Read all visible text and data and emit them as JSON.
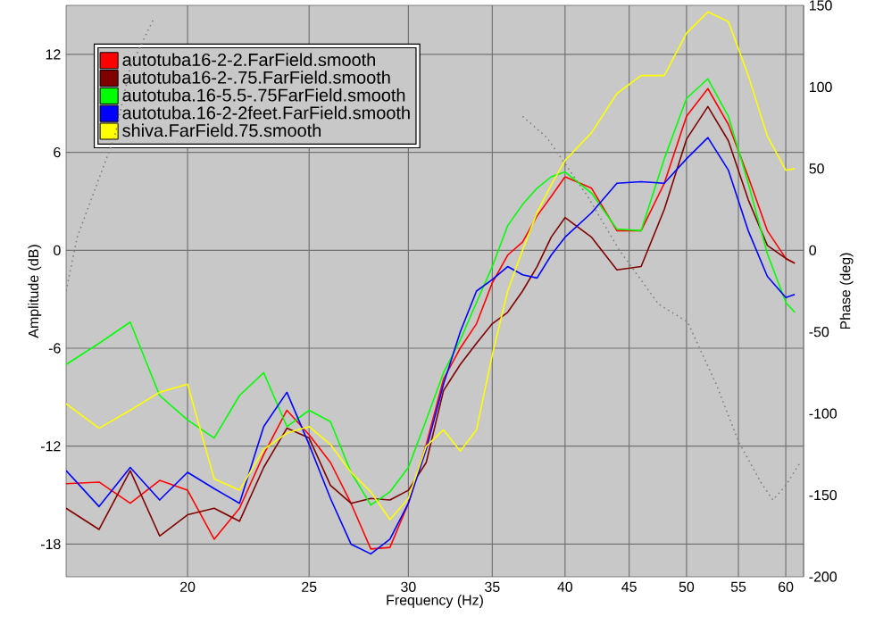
{
  "chart_data": {
    "type": "line",
    "xlabel": "Frequency (Hz)",
    "ylabel": "Amplitude (dB)",
    "y2label": "Phase (deg)",
    "log": "x",
    "xlim": [
      16,
      62
    ],
    "xticks": [
      20,
      25,
      30,
      35,
      40,
      45,
      50,
      55,
      60
    ],
    "ylim": [
      -20,
      15
    ],
    "yticks": [
      -18,
      -12,
      -6,
      0,
      6,
      12
    ],
    "y2lim": [
      -200,
      150
    ],
    "y2ticks": [
      -200,
      -150,
      -100,
      -50,
      0,
      50,
      100,
      150
    ],
    "grid": true,
    "legend": "top left",
    "x": [
      16,
      17,
      18,
      19,
      20,
      21,
      22,
      23,
      24,
      25,
      26,
      27,
      28,
      29,
      30,
      31,
      32,
      33,
      34,
      35,
      36,
      37,
      38,
      39,
      40,
      42,
      44,
      46,
      48,
      50,
      52,
      54,
      56,
      58,
      60,
      61
    ],
    "series": [
      {
        "name": "autotuba16-2-2.FarField.smooth",
        "color": "#ff0000",
        "values": [
          -14.3,
          -14.2,
          -15.5,
          -14.1,
          -14.7,
          -17.7,
          -15.8,
          -12.5,
          -9.8,
          -11.3,
          -13,
          -15.5,
          -18.3,
          -18.2,
          -15.5,
          -11.9,
          -7.9,
          -6,
          -4.5,
          -2,
          -0.3,
          0.5,
          2.1,
          3.3,
          4.5,
          3.8,
          1.2,
          1.2,
          4.1,
          8.2,
          9.9,
          7.7,
          4.5,
          1.2,
          -0.5,
          -0.8
        ]
      },
      {
        "name": "autotuba16-2-.75.FarField.smooth",
        "color": "#800000",
        "values": [
          -15.8,
          -17.1,
          -13.5,
          -17.5,
          -16.2,
          -15.8,
          -16.6,
          -13.3,
          -10.9,
          -11.5,
          -14.4,
          -15.5,
          -15.2,
          -15.3,
          -14.7,
          -13,
          -8.6,
          -7,
          -5.7,
          -4.5,
          -3.8,
          -2.5,
          -1,
          0.8,
          2,
          0.8,
          -1.2,
          -1,
          2.5,
          6.8,
          8.8,
          6.7,
          3.1,
          0.3,
          -0.5,
          -0.8
        ]
      },
      {
        "name": "autotuba.16-5.5-.75FarField.smooth",
        "color": "#00ff00",
        "values": [
          -7,
          -5.7,
          -4.4,
          -8.9,
          -10.4,
          -11.5,
          -8.9,
          -7.5,
          -10.8,
          -9.8,
          -10.5,
          -13.6,
          -15.6,
          -14.8,
          -13.3,
          -10.4,
          -7.5,
          -5.5,
          -3.2,
          -1,
          1.5,
          2.8,
          3.8,
          4.5,
          4.8,
          3.5,
          1.3,
          1.2,
          5.6,
          9.3,
          10.5,
          8.2,
          4.1,
          -0.2,
          -3.2,
          -3.8
        ]
      },
      {
        "name": "autotuba.16-2-2feet.FarField.smooth",
        "color": "#0000ff",
        "values": [
          -13.5,
          -15.7,
          -13.3,
          -15.3,
          -13.6,
          -14.6,
          -15.5,
          -10.8,
          -8.7,
          -11.9,
          -15.2,
          -18,
          -18.6,
          -17.7,
          -15.5,
          -12.2,
          -8.2,
          -5,
          -2.5,
          -1.8,
          -1,
          -1.5,
          -1.7,
          -0.3,
          0.8,
          2.3,
          4.1,
          4.2,
          4.1,
          5.6,
          6.9,
          4.9,
          1.2,
          -1.6,
          -2.9,
          -2.7
        ]
      },
      {
        "name": "shiva.FarField.75.smooth",
        "color": "#ffff00",
        "values": [
          -9.4,
          -10.9,
          -9.8,
          -8.7,
          -8.2,
          -14,
          -14.7,
          -12.2,
          -11.2,
          -10.8,
          -11.9,
          -13.6,
          -14.8,
          -16.5,
          -15.2,
          -12,
          -11,
          -12.3,
          -11,
          -6.4,
          -2.5,
          0,
          2.3,
          4,
          5.5,
          7.2,
          9.6,
          10.7,
          10.7,
          13.3,
          14.6,
          14,
          10.7,
          7,
          4.9,
          5
        ]
      },
      {
        "axis": "y2",
        "color": "#808080",
        "line_style": "dotted",
        "x": [
          16,
          16.33,
          17.5,
          18,
          18.8,
          19.5,
          37,
          38.7,
          41.7,
          44.2,
          47.5,
          50.1,
          52.8,
          55,
          57.3,
          58.6,
          60,
          61.5
        ],
        "values": [
          -25,
          8,
          70,
          112,
          142,
          null,
          82,
          69,
          33,
          0,
          -33,
          -44,
          -82,
          -117,
          -142,
          -153,
          -144,
          -131
        ]
      }
    ]
  }
}
